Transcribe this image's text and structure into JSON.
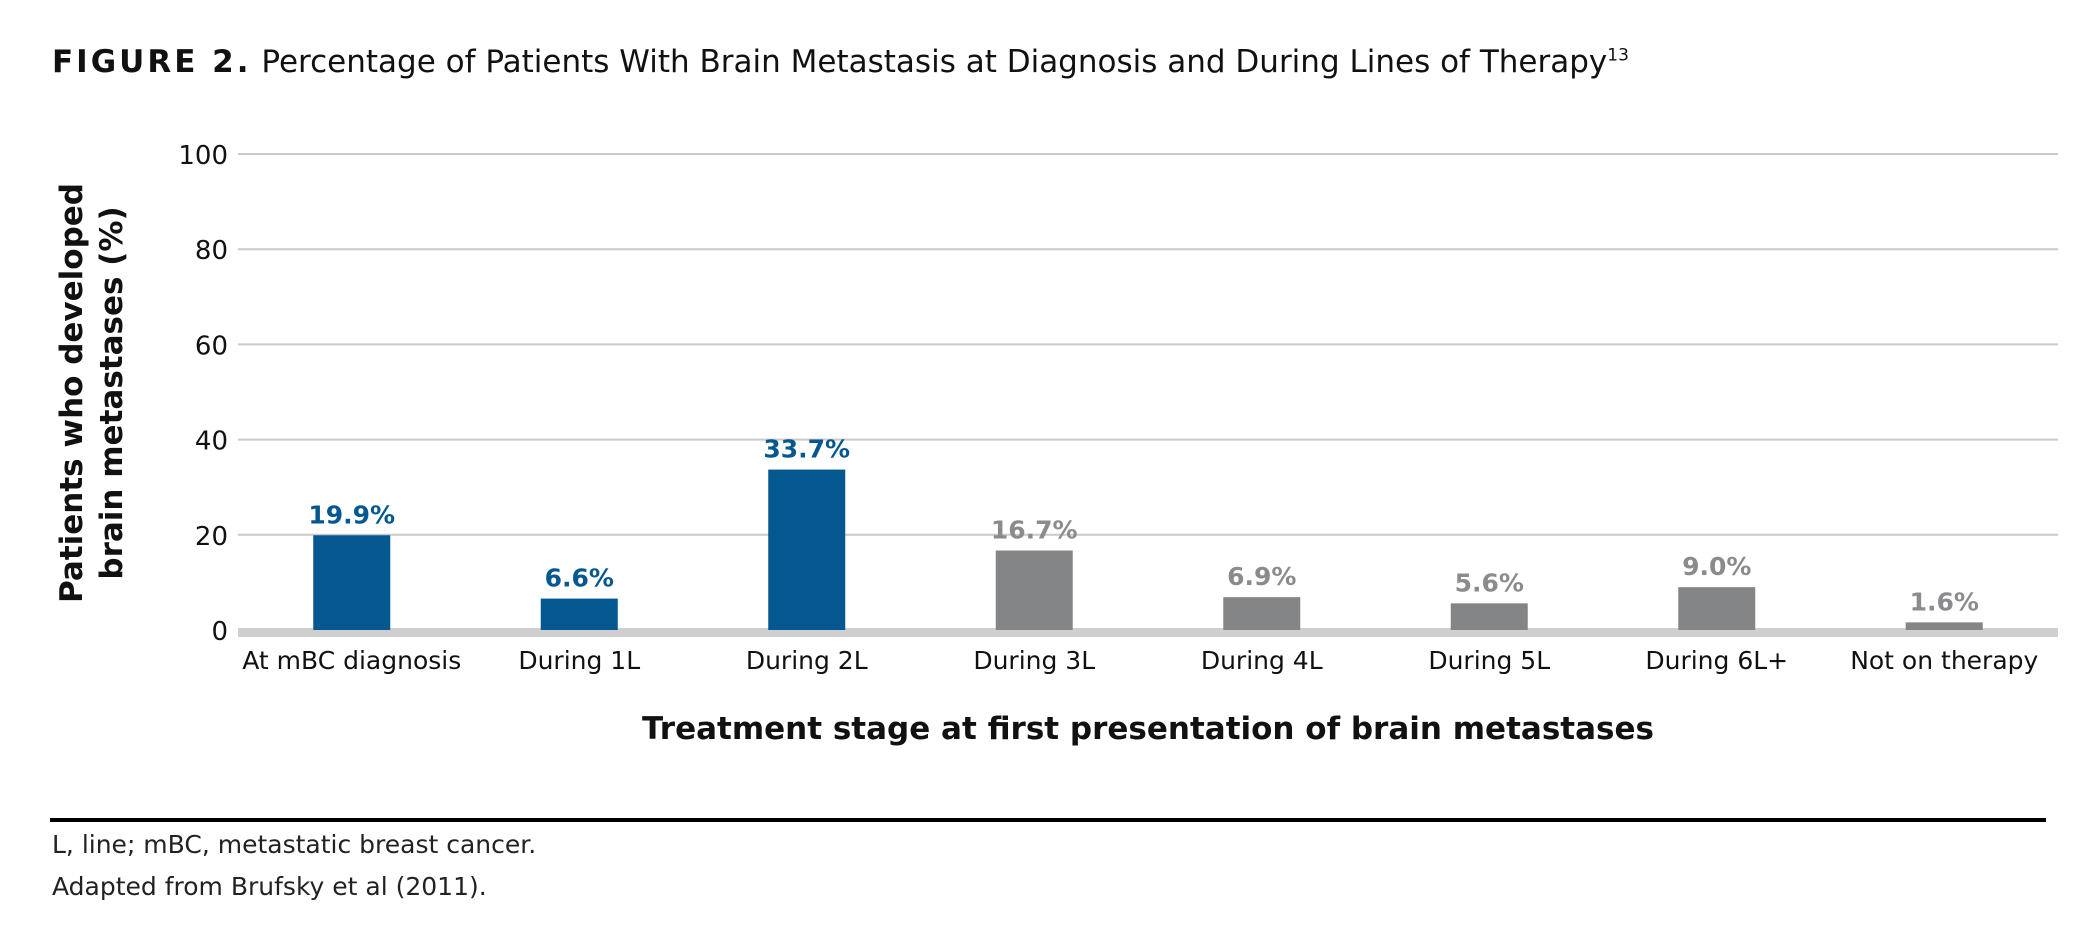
{
  "figure": {
    "label": "FIGURE 2.",
    "title": "Percentage of Patients With Brain Metastasis at Diagnosis and During Lines of Therapy",
    "reference": "13"
  },
  "chart_data": {
    "type": "bar",
    "title": "Percentage of Patients With Brain Metastasis at Diagnosis and During Lines of Therapy",
    "ylabel": [
      "Patients who developed",
      "brain metastases (%)"
    ],
    "xlabel": "Treatment stage at first presentation of brain metastases",
    "ylim": [
      0,
      100
    ],
    "yticks": [
      0,
      20,
      40,
      60,
      80,
      100
    ],
    "grid": true,
    "categories": [
      "At mBC diagnosis",
      "During 1L",
      "During 2L",
      "During 3L",
      "During 4L",
      "During 5L",
      "During 6L+",
      "Not on therapy"
    ],
    "values": [
      19.9,
      6.6,
      33.7,
      16.7,
      6.9,
      5.6,
      9.0,
      1.6
    ],
    "data_labels": [
      "19.9%",
      "6.6%",
      "33.7%",
      "16.7%",
      "6.9%",
      "5.6%",
      "9.0%",
      "1.6%"
    ],
    "bar_colors": [
      "#04578f",
      "#04578f",
      "#04578f",
      "#848587",
      "#848587",
      "#848587",
      "#848587",
      "#848587"
    ],
    "label_colors": [
      "#04578f",
      "#04578f",
      "#04578f",
      "#8a8b8d",
      "#8a8b8d",
      "#8a8b8d",
      "#8a8b8d",
      "#8a8b8d"
    ]
  },
  "footnotes": {
    "abbreviations": " L, line; mBC, metastatic breast cancer.",
    "source": "Adapted from Brufsky et al (2011)."
  }
}
